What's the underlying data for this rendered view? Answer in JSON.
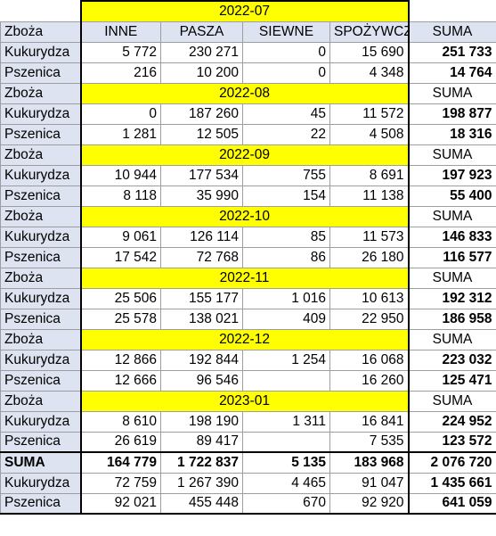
{
  "colors": {
    "date_fill": "#ffff00",
    "label_fill": "#dde3f0"
  },
  "labels": {
    "zboza": "Zboża",
    "kukurydza": "Kukurydza",
    "pszenica": "Pszenica",
    "suma": "SUMA",
    "suma_total": "SUMA"
  },
  "columns": [
    "INNE",
    "PASZA",
    "SIEWNE",
    "SPOŻYWCZE",
    "SUMA"
  ],
  "blocks": [
    {
      "date": "2022-07",
      "kukurydza": [
        "5 772",
        "230 271",
        "0",
        "15 690",
        "251 733"
      ],
      "pszenica": [
        "216",
        "10 200",
        "0",
        "4 348",
        "14 764"
      ]
    },
    {
      "date": "2022-08",
      "kukurydza": [
        "0",
        "187 260",
        "45",
        "11 572",
        "198 877"
      ],
      "pszenica": [
        "1 281",
        "12 505",
        "22",
        "4 508",
        "18 316"
      ]
    },
    {
      "date": "2022-09",
      "kukurydza": [
        "10 944",
        "177 534",
        "755",
        "8 691",
        "197 923"
      ],
      "pszenica": [
        "8 118",
        "35 990",
        "154",
        "11 138",
        "55 400"
      ]
    },
    {
      "date": "2022-10",
      "kukurydza": [
        "9 061",
        "126 114",
        "85",
        "11 573",
        "146 833"
      ],
      "pszenica": [
        "17 542",
        "72 768",
        "86",
        "26 180",
        "116 577"
      ]
    },
    {
      "date": "2022-11",
      "kukurydza": [
        "25 506",
        "155 177",
        "1 016",
        "10 613",
        "192 312"
      ],
      "pszenica": [
        "25 578",
        "138 021",
        "409",
        "22 950",
        "186 958"
      ]
    },
    {
      "date": "2022-12",
      "kukurydza": [
        "12 866",
        "192 844",
        "1 254",
        "16 068",
        "223 032"
      ],
      "pszenica": [
        "12 666",
        "96 546",
        "",
        "16 260",
        "125 471"
      ]
    },
    {
      "date": "2023-01",
      "kukurydza": [
        "8 610",
        "198 190",
        "1 311",
        "16 841",
        "224 952"
      ],
      "pszenica": [
        "26 619",
        "89 417",
        "",
        "7 535",
        "123 572"
      ]
    }
  ],
  "totals": {
    "suma": [
      "164 779",
      "1 722 837",
      "5 135",
      "183 968",
      "2 076 720"
    ],
    "kukurydza": [
      "72 759",
      "1 267 390",
      "4 465",
      "91 047",
      "1 435 661"
    ],
    "pszenica": [
      "92 021",
      "455 448",
      "670",
      "92 920",
      "641 059"
    ]
  }
}
